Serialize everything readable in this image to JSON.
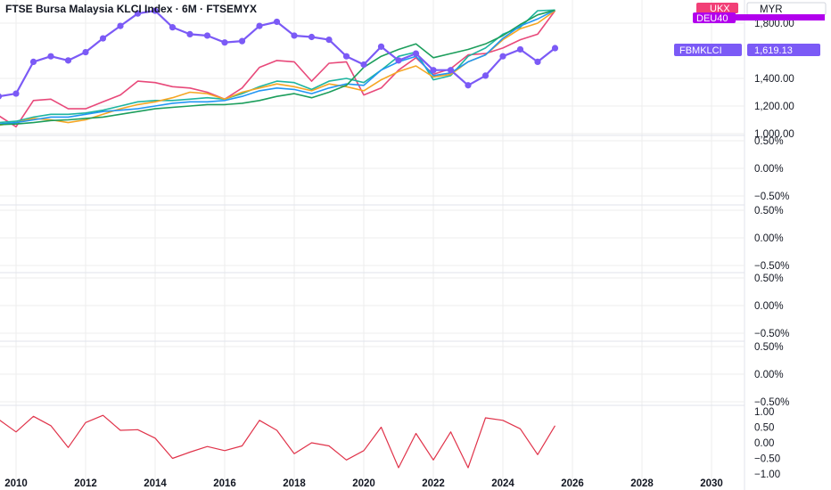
{
  "title": "FTSE Bursa Malaysia KLCI Index · 6M · FTSEMYX",
  "currency": "MYR",
  "legend_badges": [
    {
      "label": "UKX",
      "color": "#f23f77"
    },
    {
      "label": "DEU40",
      "color": "#b200ed"
    }
  ],
  "last_value_badge": {
    "label": "FBMKLCI",
    "value": "1,619.13",
    "color": "#7b5af6"
  },
  "colors": {
    "FBMKLCI": "#7b5af6",
    "UKX": "#e8497a",
    "DEU40": "#1c9e5c",
    "SPX": "#f5a623",
    "NDX": "#2196f3",
    "teal": "#1fb5a0",
    "indicator": "#e0334a",
    "grid": "#eeeeee"
  },
  "chart_data": [
    {
      "type": "line",
      "name": "main",
      "x_axis_ticks": [
        "2010",
        "2012",
        "2014",
        "2016",
        "2018",
        "2020",
        "2022",
        "2024",
        "2026",
        "2028",
        "2030"
      ],
      "y_ticks": [
        "1,800.00",
        "1,400.00",
        "1,200.00",
        "1,000.00"
      ],
      "ylim": [
        1000,
        1900
      ],
      "series": [
        {
          "key": "FBMKLCI",
          "points": [
            [
              2009.5,
              1270
            ],
            [
              2010.0,
              1290
            ],
            [
              2010.5,
              1520
            ],
            [
              2011.0,
              1560
            ],
            [
              2011.5,
              1530
            ],
            [
              2012.0,
              1590
            ],
            [
              2012.5,
              1690
            ],
            [
              2013.0,
              1780
            ],
            [
              2013.5,
              1870
            ],
            [
              2014.0,
              1890
            ],
            [
              2014.5,
              1770
            ],
            [
              2015.0,
              1720
            ],
            [
              2015.5,
              1710
            ],
            [
              2016.0,
              1660
            ],
            [
              2016.5,
              1670
            ],
            [
              2017.0,
              1780
            ],
            [
              2017.5,
              1810
            ],
            [
              2018.0,
              1710
            ],
            [
              2018.5,
              1700
            ],
            [
              2019.0,
              1680
            ],
            [
              2019.5,
              1560
            ],
            [
              2020.0,
              1500
            ],
            [
              2020.5,
              1630
            ],
            [
              2021.0,
              1530
            ],
            [
              2021.5,
              1580
            ],
            [
              2022.0,
              1460
            ],
            [
              2022.5,
              1460
            ],
            [
              2023.0,
              1350
            ],
            [
              2023.5,
              1420
            ],
            [
              2024.0,
              1560
            ],
            [
              2024.5,
              1610
            ],
            [
              2025.0,
              1520
            ],
            [
              2025.5,
              1619.13
            ]
          ]
        },
        {
          "key": "UKX",
          "points": [
            [
              2009.5,
              1130
            ],
            [
              2010.0,
              1050
            ],
            [
              2010.5,
              1240
            ],
            [
              2011.0,
              1250
            ],
            [
              2011.5,
              1180
            ],
            [
              2012.0,
              1180
            ],
            [
              2012.5,
              1230
            ],
            [
              2013.0,
              1280
            ],
            [
              2013.5,
              1380
            ],
            [
              2014.0,
              1370
            ],
            [
              2014.5,
              1340
            ],
            [
              2015.0,
              1330
            ],
            [
              2015.5,
              1300
            ],
            [
              2016.0,
              1250
            ],
            [
              2016.5,
              1330
            ],
            [
              2017.0,
              1480
            ],
            [
              2017.5,
              1530
            ],
            [
              2018.0,
              1520
            ],
            [
              2018.5,
              1380
            ],
            [
              2019.0,
              1510
            ],
            [
              2019.5,
              1520
            ],
            [
              2020.0,
              1280
            ],
            [
              2020.5,
              1330
            ],
            [
              2021.0,
              1460
            ],
            [
              2021.5,
              1550
            ],
            [
              2022.0,
              1430
            ],
            [
              2022.5,
              1470
            ],
            [
              2023.0,
              1570
            ],
            [
              2023.5,
              1580
            ],
            [
              2024.0,
              1620
            ],
            [
              2024.5,
              1680
            ],
            [
              2025.0,
              1720
            ],
            [
              2025.5,
              1890
            ]
          ]
        },
        {
          "key": "DEU40",
          "points": [
            [
              2009.5,
              1065
            ],
            [
              2010.0,
              1070
            ],
            [
              2010.5,
              1080
            ],
            [
              2011.0,
              1095
            ],
            [
              2011.5,
              1100
            ],
            [
              2012.0,
              1110
            ],
            [
              2012.5,
              1120
            ],
            [
              2013.0,
              1140
            ],
            [
              2013.5,
              1160
            ],
            [
              2014.0,
              1180
            ],
            [
              2014.5,
              1190
            ],
            [
              2015.0,
              1200
            ],
            [
              2015.5,
              1210
            ],
            [
              2016.0,
              1210
            ],
            [
              2016.5,
              1220
            ],
            [
              2017.0,
              1240
            ],
            [
              2017.5,
              1270
            ],
            [
              2018.0,
              1290
            ],
            [
              2018.5,
              1260
            ],
            [
              2019.0,
              1300
            ],
            [
              2019.5,
              1350
            ],
            [
              2020.0,
              1480
            ],
            [
              2020.5,
              1560
            ],
            [
              2021.0,
              1610
            ],
            [
              2021.5,
              1650
            ],
            [
              2022.0,
              1550
            ],
            [
              2022.5,
              1580
            ],
            [
              2023.0,
              1610
            ],
            [
              2023.5,
              1650
            ],
            [
              2024.0,
              1710
            ],
            [
              2024.5,
              1790
            ],
            [
              2025.0,
              1860
            ],
            [
              2025.5,
              1895
            ]
          ]
        },
        {
          "key": "SPX",
          "points": [
            [
              2009.5,
              1060
            ],
            [
              2010.0,
              1080
            ],
            [
              2010.5,
              1110
            ],
            [
              2011.0,
              1100
            ],
            [
              2011.5,
              1080
            ],
            [
              2012.0,
              1100
            ],
            [
              2012.5,
              1140
            ],
            [
              2013.0,
              1180
            ],
            [
              2013.5,
              1210
            ],
            [
              2014.0,
              1230
            ],
            [
              2014.5,
              1260
            ],
            [
              2015.0,
              1300
            ],
            [
              2015.5,
              1290
            ],
            [
              2016.0,
              1250
            ],
            [
              2016.5,
              1300
            ],
            [
              2017.0,
              1330
            ],
            [
              2017.5,
              1360
            ],
            [
              2018.0,
              1340
            ],
            [
              2018.5,
              1310
            ],
            [
              2019.0,
              1360
            ],
            [
              2019.5,
              1340
            ],
            [
              2020.0,
              1310
            ],
            [
              2020.5,
              1390
            ],
            [
              2021.0,
              1450
            ],
            [
              2021.5,
              1490
            ],
            [
              2022.0,
              1410
            ],
            [
              2022.5,
              1430
            ],
            [
              2023.0,
              1520
            ],
            [
              2023.5,
              1570
            ],
            [
              2024.0,
              1680
            ],
            [
              2024.5,
              1760
            ],
            [
              2025.0,
              1800
            ],
            [
              2025.5,
              1890
            ]
          ]
        },
        {
          "key": "NDX",
          "points": [
            [
              2009.5,
              1070
            ],
            [
              2010.0,
              1080
            ],
            [
              2010.5,
              1100
            ],
            [
              2011.0,
              1120
            ],
            [
              2011.5,
              1120
            ],
            [
              2012.0,
              1140
            ],
            [
              2012.5,
              1160
            ],
            [
              2013.0,
              1170
            ],
            [
              2013.5,
              1180
            ],
            [
              2014.0,
              1200
            ],
            [
              2014.5,
              1220
            ],
            [
              2015.0,
              1230
            ],
            [
              2015.5,
              1230
            ],
            [
              2016.0,
              1240
            ],
            [
              2016.5,
              1270
            ],
            [
              2017.0,
              1310
            ],
            [
              2017.5,
              1330
            ],
            [
              2018.0,
              1320
            ],
            [
              2018.5,
              1290
            ],
            [
              2019.0,
              1330
            ],
            [
              2019.5,
              1360
            ],
            [
              2020.0,
              1350
            ],
            [
              2020.5,
              1460
            ],
            [
              2021.0,
              1520
            ],
            [
              2021.5,
              1560
            ],
            [
              2022.0,
              1420
            ],
            [
              2022.5,
              1440
            ],
            [
              2023.0,
              1520
            ],
            [
              2023.5,
              1570
            ],
            [
              2024.0,
              1690
            ],
            [
              2024.5,
              1780
            ],
            [
              2025.0,
              1830
            ],
            [
              2025.5,
              1895
            ]
          ]
        },
        {
          "key": "teal",
          "points": [
            [
              2009.5,
              1080
            ],
            [
              2010.0,
              1090
            ],
            [
              2010.5,
              1120
            ],
            [
              2011.0,
              1140
            ],
            [
              2011.5,
              1140
            ],
            [
              2012.0,
              1150
            ],
            [
              2012.5,
              1170
            ],
            [
              2013.0,
              1200
            ],
            [
              2013.5,
              1230
            ],
            [
              2014.0,
              1240
            ],
            [
              2014.5,
              1240
            ],
            [
              2015.0,
              1250
            ],
            [
              2015.5,
              1260
            ],
            [
              2016.0,
              1250
            ],
            [
              2016.5,
              1290
            ],
            [
              2017.0,
              1340
            ],
            [
              2017.5,
              1380
            ],
            [
              2018.0,
              1370
            ],
            [
              2018.5,
              1320
            ],
            [
              2019.0,
              1380
            ],
            [
              2019.5,
              1400
            ],
            [
              2020.0,
              1370
            ],
            [
              2020.5,
              1460
            ],
            [
              2021.0,
              1560
            ],
            [
              2021.5,
              1590
            ],
            [
              2022.0,
              1390
            ],
            [
              2022.5,
              1420
            ],
            [
              2023.0,
              1560
            ],
            [
              2023.5,
              1620
            ],
            [
              2024.0,
              1720
            ],
            [
              2024.5,
              1770
            ],
            [
              2025.0,
              1890
            ],
            [
              2025.5,
              1895
            ]
          ]
        }
      ]
    },
    {
      "type": "line",
      "name": "empty-panels",
      "y_ticks": [
        "0.50%",
        "0.00%",
        "−0.50%"
      ],
      "panel_count": 4
    },
    {
      "type": "line",
      "name": "indicator",
      "y_ticks": [
        "1.00",
        "0.50",
        "0.00",
        "−0.50",
        "−1.00"
      ],
      "ylim": [
        -1.0,
        1.0
      ],
      "series": [
        {
          "key": "indicator",
          "points": [
            [
              2009.5,
              0.75
            ],
            [
              2010.0,
              0.35
            ],
            [
              2010.5,
              0.85
            ],
            [
              2011.0,
              0.55
            ],
            [
              2011.5,
              -0.15
            ],
            [
              2012.0,
              0.65
            ],
            [
              2012.5,
              0.88
            ],
            [
              2013.0,
              0.4
            ],
            [
              2013.5,
              0.42
            ],
            [
              2014.0,
              0.15
            ],
            [
              2014.5,
              -0.5
            ],
            [
              2015.0,
              -0.3
            ],
            [
              2015.5,
              -0.12
            ],
            [
              2016.0,
              -0.25
            ],
            [
              2016.5,
              -0.1
            ],
            [
              2017.0,
              0.72
            ],
            [
              2017.5,
              0.4
            ],
            [
              2018.0,
              -0.35
            ],
            [
              2018.5,
              0.0
            ],
            [
              2019.0,
              -0.1
            ],
            [
              2019.5,
              -0.55
            ],
            [
              2020.0,
              -0.25
            ],
            [
              2020.5,
              0.5
            ],
            [
              2021.0,
              -0.8
            ],
            [
              2021.5,
              0.3
            ],
            [
              2022.0,
              -0.55
            ],
            [
              2022.5,
              0.35
            ],
            [
              2023.0,
              -0.8
            ],
            [
              2023.5,
              0.8
            ],
            [
              2024.0,
              0.72
            ],
            [
              2024.5,
              0.45
            ],
            [
              2025.0,
              -0.38
            ],
            [
              2025.5,
              0.55
            ]
          ]
        }
      ]
    }
  ]
}
